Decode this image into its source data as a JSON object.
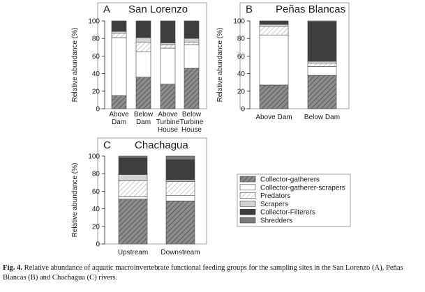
{
  "chart_data": [
    {
      "type": "bar",
      "panel": "A",
      "title": "San Lorenzo",
      "ylabel": "Relative abundance (%)",
      "ylim": [
        0,
        100
      ],
      "yticks": [
        0,
        20,
        40,
        60,
        80,
        100
      ],
      "categories": [
        [
          "Above",
          "Dam"
        ],
        [
          "Below",
          "Dam"
        ],
        [
          "Above",
          "Turbine",
          "House"
        ],
        [
          "Below",
          "Turbine",
          "House"
        ]
      ],
      "series": [
        {
          "name": "Collector-gatherers",
          "values": [
            15,
            36,
            28,
            46
          ]
        },
        {
          "name": "Collector-gatherer-scrapers",
          "values": [
            66,
            29,
            41,
            27
          ]
        },
        {
          "name": "Predators",
          "values": [
            5,
            11,
            4,
            3
          ]
        },
        {
          "name": "Scrapers",
          "values": [
            2,
            5,
            2,
            4
          ]
        },
        {
          "name": "Collector-Filterers",
          "values": [
            12,
            19,
            25,
            20
          ]
        },
        {
          "name": "Shredders",
          "values": [
            0,
            0,
            0,
            0
          ]
        }
      ]
    },
    {
      "type": "bar",
      "panel": "B",
      "title": "Peñas Blancas",
      "ylabel": "Relative abundance (%)",
      "ylim": [
        0,
        100
      ],
      "yticks": [
        0,
        20,
        40,
        60,
        80,
        100
      ],
      "categories": [
        [
          "Above Dam"
        ],
        [
          "Below Dam"
        ]
      ],
      "series": [
        {
          "name": "Collector-gatherers",
          "values": [
            27,
            38
          ]
        },
        {
          "name": "Collector-gatherer-scrapers",
          "values": [
            57,
            10
          ]
        },
        {
          "name": "Predators",
          "values": [
            10,
            4
          ]
        },
        {
          "name": "Scrapers",
          "values": [
            2,
            2
          ]
        },
        {
          "name": "Collector-Filterers",
          "values": [
            4,
            45
          ]
        },
        {
          "name": "Shredders",
          "values": [
            0,
            1
          ]
        }
      ]
    },
    {
      "type": "bar",
      "panel": "C",
      "title": "Chachagua",
      "ylabel": "Relative abundance (%)",
      "ylim": [
        0,
        100
      ],
      "yticks": [
        0,
        20,
        40,
        60,
        80,
        100
      ],
      "categories": [
        [
          "Upstream"
        ],
        [
          "Downstream"
        ]
      ],
      "series": [
        {
          "name": "Collector-gatherers",
          "values": [
            51,
            49
          ]
        },
        {
          "name": "Collector-gatherer-scrapers",
          "values": [
            3,
            6
          ]
        },
        {
          "name": "Predators",
          "values": [
            18,
            16
          ]
        },
        {
          "name": "Scrapers",
          "values": [
            7,
            2
          ]
        },
        {
          "name": "Collector-Filterers",
          "values": [
            19,
            23
          ]
        },
        {
          "name": "Shredders",
          "values": [
            2,
            4
          ]
        }
      ]
    }
  ],
  "legend": [
    {
      "name": "Collector-gatherers",
      "pattern": "hatch-dark"
    },
    {
      "name": "Collector-gatherer-scrapers",
      "pattern": "white"
    },
    {
      "name": "Predators",
      "pattern": "hatch-light"
    },
    {
      "name": "Scrapers",
      "pattern": "light-gray"
    },
    {
      "name": "Collector-Filterers",
      "pattern": "dark"
    },
    {
      "name": "Shredders",
      "pattern": "mid-gray"
    }
  ],
  "colors": {
    "hatch_dark_bg": "#8c8c8c",
    "hatch_dark_line": "#5a5a5a",
    "white": "#ffffff",
    "hatch_light_bg": "#ffffff",
    "hatch_light_line": "#9a9a9a",
    "light_gray": "#d4d4d4",
    "dark": "#3e3e3e",
    "mid_gray": "#7a7a7a",
    "outline": "#444444"
  },
  "caption": {
    "label": "Fig. 4.",
    "text": "Relative abundance of aquatic macroinvertebrate functional feeding groups for the sampling sites in the San Lorenzo (A), Peñas Blancas (B) and Chachagua (C) rivers."
  }
}
